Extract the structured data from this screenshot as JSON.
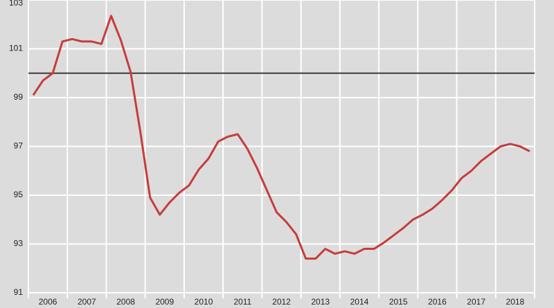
{
  "chart_data": {
    "type": "line",
    "categories": [
      "2006",
      "2007",
      "2008",
      "2009",
      "2010",
      "2011",
      "2012",
      "2013",
      "2014",
      "2015",
      "2016",
      "2017",
      "2018"
    ],
    "x": [
      2006.125,
      2006.375,
      2006.625,
      2006.875,
      2007.125,
      2007.375,
      2007.625,
      2007.875,
      2008.125,
      2008.375,
      2008.625,
      2008.875,
      2009.125,
      2009.375,
      2009.625,
      2009.875,
      2010.125,
      2010.375,
      2010.625,
      2010.875,
      2011.125,
      2011.375,
      2011.625,
      2011.875,
      2012.125,
      2012.375,
      2012.625,
      2012.875,
      2013.125,
      2013.375,
      2013.625,
      2013.875,
      2014.125,
      2014.375,
      2014.625,
      2014.875,
      2015.125,
      2015.375,
      2015.625,
      2015.875,
      2016.125,
      2016.375,
      2016.625,
      2016.875,
      2017.125,
      2017.375,
      2017.625,
      2017.875,
      2018.125,
      2018.375,
      2018.625,
      2018.875
    ],
    "series": [
      {
        "color": "#c73b3b",
        "values": [
          99.1,
          99.7,
          100.0,
          101.3,
          101.4,
          101.3,
          101.3,
          101.2,
          102.35,
          101.35,
          100.05,
          97.6,
          94.9,
          94.2,
          94.7,
          95.1,
          95.4,
          96.05,
          96.5,
          97.2,
          97.4,
          97.5,
          96.9,
          96.1,
          95.2,
          94.3,
          93.9,
          93.4,
          92.4,
          92.4,
          92.8,
          92.6,
          92.7,
          92.6,
          92.8,
          92.8,
          93.05,
          93.35,
          93.65,
          94.0,
          94.2,
          94.45,
          94.8,
          95.2,
          95.7,
          96.0,
          96.4,
          96.7,
          97.0,
          97.1,
          97.0,
          96.8
        ]
      }
    ],
    "reference_line": {
      "value": 100,
      "color": "#3a3a3a"
    },
    "xlim": [
      2006,
      2019
    ],
    "xticks": [
      2006,
      2007,
      2008,
      2009,
      2010,
      2011,
      2012,
      2013,
      2014,
      2015,
      2016,
      2017,
      2018,
      2019
    ],
    "ylim": [
      91,
      103
    ],
    "yticks": [
      91,
      93,
      95,
      97,
      99,
      101,
      103
    ],
    "grid": true
  }
}
